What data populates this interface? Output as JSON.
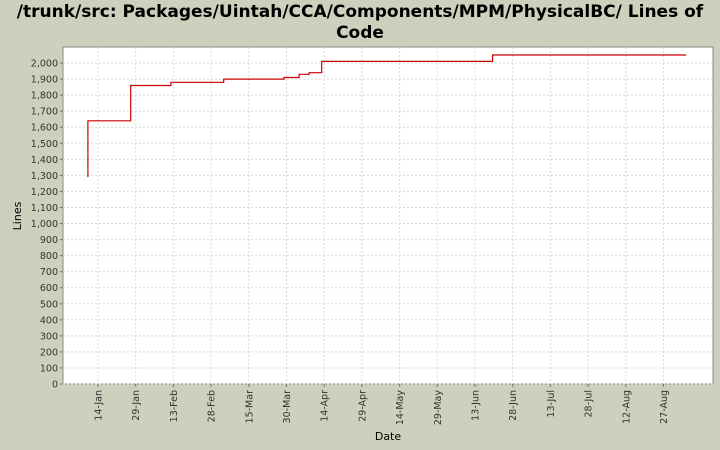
{
  "chart_data": {
    "type": "line",
    "title": "/trunk/src: Packages/Uintah/CCA/Components/MPM/PhysicalBC/ Lines of Code",
    "xlabel": "Date",
    "ylabel": "Lines",
    "ylim": [
      0,
      2100
    ],
    "yticks": [
      0,
      100,
      200,
      300,
      400,
      500,
      600,
      700,
      800,
      900,
      1000,
      1100,
      1200,
      1300,
      1400,
      1500,
      1600,
      1700,
      1800,
      1900,
      2000
    ],
    "xticks": [
      "14-Jan",
      "29-Jan",
      "13-Feb",
      "28-Feb",
      "15-Mar",
      "30-Mar",
      "14-Apr",
      "29-Apr",
      "14-May",
      "29-May",
      "13-Jun",
      "28-Jun",
      "13-Jul",
      "28-Jul",
      "12-Aug",
      "27-Aug"
    ],
    "grid": true,
    "step": true,
    "series": [
      {
        "color": "#cc0000",
        "points": [
          {
            "x": "Jan 10",
            "y": 1290
          },
          {
            "x": "Jan 10",
            "y": 1640
          },
          {
            "x": "Jan 27",
            "y": 1640
          },
          {
            "x": "Jan 27",
            "y": 1860
          },
          {
            "x": "Feb 12",
            "y": 1860
          },
          {
            "x": "Feb 12",
            "y": 1880
          },
          {
            "x": "Mar 5",
            "y": 1880
          },
          {
            "x": "Mar 5",
            "y": 1900
          },
          {
            "x": "Mar 29",
            "y": 1900
          },
          {
            "x": "Mar 29",
            "y": 1910
          },
          {
            "x": "Apr 4",
            "y": 1910
          },
          {
            "x": "Apr 4",
            "y": 1930
          },
          {
            "x": "Apr 8",
            "y": 1930
          },
          {
            "x": "Apr 8",
            "y": 1940
          },
          {
            "x": "Apr 13",
            "y": 1940
          },
          {
            "x": "Apr 13",
            "y": 2010
          },
          {
            "x": "Jun 20",
            "y": 2010
          },
          {
            "x": "Jun 20",
            "y": 2050
          },
          {
            "x": "Sep 5",
            "y": 2050
          }
        ]
      }
    ]
  }
}
